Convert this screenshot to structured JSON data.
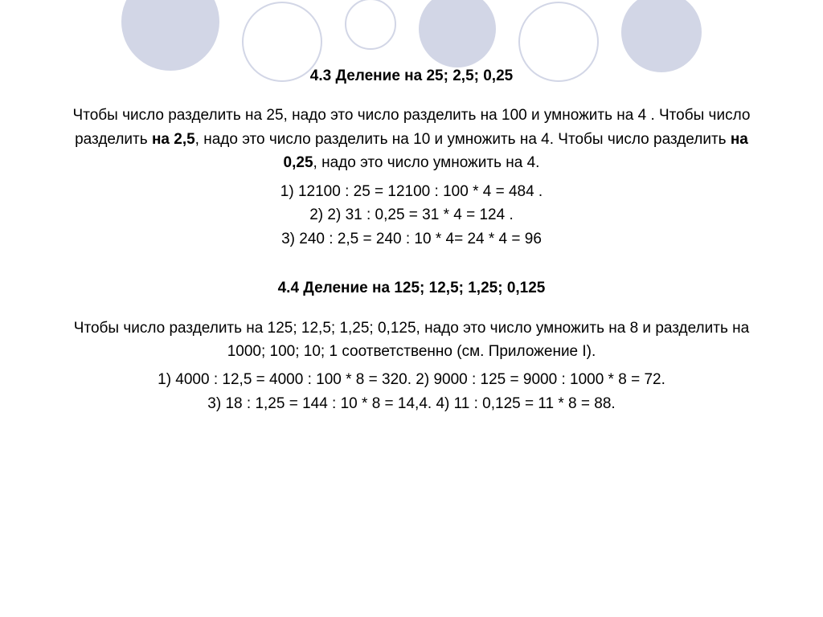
{
  "colors": {
    "circle_fill": "#d2d6e6",
    "circle_stroke": "#d2d6e6",
    "background": "#ffffff",
    "text": "#000000"
  },
  "section1": {
    "title": "4.3 Деление на 25; 2,5; 0,25",
    "para_pre": "Чтобы число разделить на  25, надо это число разделить на 100 и умножить на  4 . Чтобы число разделить ",
    "para_b1": "на 2,5",
    "para_mid": ", надо это число разделить на  10 и умножить на  4.  Чтобы число разделить ",
    "para_b2": "на 0,25",
    "para_post": ", надо это число умножить на  4.",
    "ex1": "1)    12100 : 25 =  12100 : 100  * 4 = 484 .",
    "ex2": "2)            2) 31 : 0,25 = 31  * 4 = 124 .",
    "ex3": "3) 240 : 2,5 = 240 : 10  * 4= 24 *  4 = 96"
  },
  "section2": {
    "title": "4.4 Деление на 125; 12,5; 1,25; 0,125",
    "para1": "Чтобы число разделить на 125; 12,5; 1,25; 0,125, надо это число умножить на 8 и разделить на 1000; 100; 10; 1 соответственно (см. Приложение I).",
    "ex1": "1) 4000 : 12,5 = 4000 : 100 * 8 = 320.    2) 9000 : 125 = 9000 : 1000 * 8 = 72.",
    "ex2": "3) 18 : 1,25 = 144 : 10 * 8 = 14,4.                     4) 11 : 0,125 = 11 * 8 = 88."
  }
}
